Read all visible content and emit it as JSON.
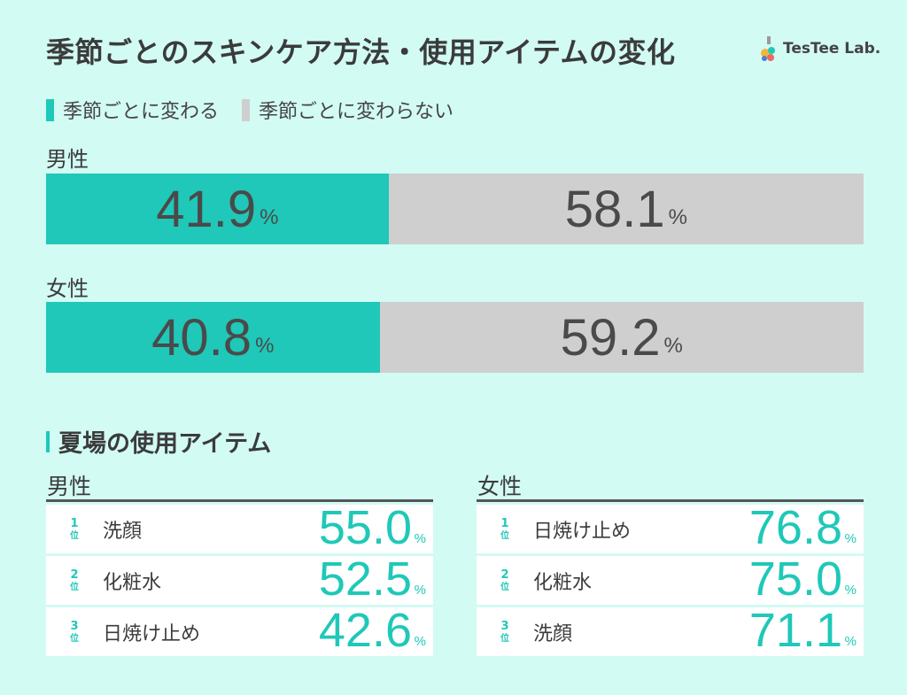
{
  "title": "季節ごとのスキンケア方法・使用アイテムの変化",
  "logo": {
    "text": "TesTee Lab.",
    "icon": "flask-logo-icon"
  },
  "colors": {
    "teal": "#1fc8b8",
    "gray": "#cfcfcf",
    "background": "#d2fbf4"
  },
  "legend": [
    {
      "label": "季節ごとに変わる",
      "color": "#1fc8b8"
    },
    {
      "label": "季節ごとに変わらない",
      "color": "#cfcfcf"
    }
  ],
  "chart_data": [
    {
      "type": "bar",
      "orientation": "horizontal-stacked-100",
      "series": [
        {
          "name": "季節ごとに変わる",
          "values": [
            41.9,
            40.8
          ]
        },
        {
          "name": "季節ごとに変わらない",
          "values": [
            58.1,
            59.2
          ]
        }
      ],
      "categories": [
        "男性",
        "女性"
      ],
      "unit": "%"
    },
    {
      "type": "table",
      "title": "夏場の使用アイテム",
      "groups": [
        {
          "name": "男性",
          "rows": [
            {
              "rank": "1",
              "rank_suffix": "位",
              "item": "洗顔",
              "value": "55.0",
              "unit": "%"
            },
            {
              "rank": "2",
              "rank_suffix": "位",
              "item": "化粧水",
              "value": "52.5",
              "unit": "%"
            },
            {
              "rank": "3",
              "rank_suffix": "位",
              "item": "日焼け止め",
              "value": "42.6",
              "unit": "%"
            }
          ]
        },
        {
          "name": "女性",
          "rows": [
            {
              "rank": "1",
              "rank_suffix": "位",
              "item": "日焼け止め",
              "value": "76.8",
              "unit": "%"
            },
            {
              "rank": "2",
              "rank_suffix": "位",
              "item": "化粧水",
              "value": "75.0",
              "unit": "%"
            },
            {
              "rank": "3",
              "rank_suffix": "位",
              "item": "洗顔",
              "value": "71.1",
              "unit": "%"
            }
          ]
        }
      ]
    }
  ]
}
